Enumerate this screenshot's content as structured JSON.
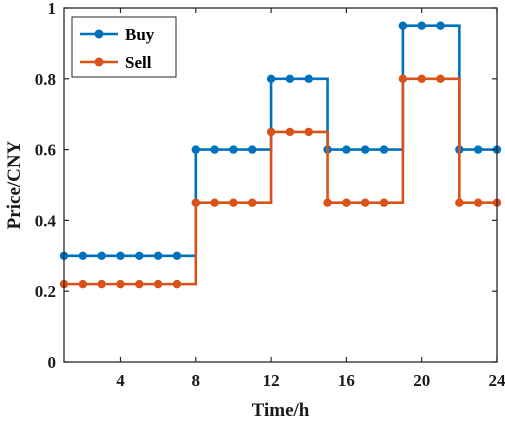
{
  "chart_data": {
    "type": "line",
    "step": true,
    "xlabel": "Time/h",
    "ylabel": "Price/CNY",
    "xlim": [
      1,
      24
    ],
    "ylim": [
      0,
      1
    ],
    "xticks": [
      4,
      8,
      12,
      16,
      20,
      24
    ],
    "yticks": [
      0,
      0.2,
      0.4,
      0.6,
      0.8,
      1
    ],
    "ytick_labels": [
      "0",
      "0.2",
      "0.4",
      "0.6",
      "0.8",
      "1"
    ],
    "grid": false,
    "legend_position": "top-left",
    "x": [
      1,
      2,
      3,
      4,
      5,
      6,
      7,
      8,
      9,
      10,
      11,
      12,
      13,
      14,
      15,
      16,
      17,
      18,
      19,
      20,
      21,
      22,
      23,
      24
    ],
    "series": [
      {
        "name": "Buy",
        "color": "#0072BD",
        "values": [
          0.3,
          0.3,
          0.3,
          0.3,
          0.3,
          0.3,
          0.3,
          0.6,
          0.6,
          0.6,
          0.6,
          0.8,
          0.8,
          0.8,
          0.6,
          0.6,
          0.6,
          0.6,
          0.95,
          0.95,
          0.95,
          0.6,
          0.6,
          0.6
        ]
      },
      {
        "name": "Sell",
        "color": "#D95319",
        "values": [
          0.22,
          0.22,
          0.22,
          0.22,
          0.22,
          0.22,
          0.22,
          0.45,
          0.45,
          0.45,
          0.45,
          0.65,
          0.65,
          0.65,
          0.45,
          0.45,
          0.45,
          0.45,
          0.8,
          0.8,
          0.8,
          0.45,
          0.45,
          0.45
        ]
      }
    ]
  }
}
